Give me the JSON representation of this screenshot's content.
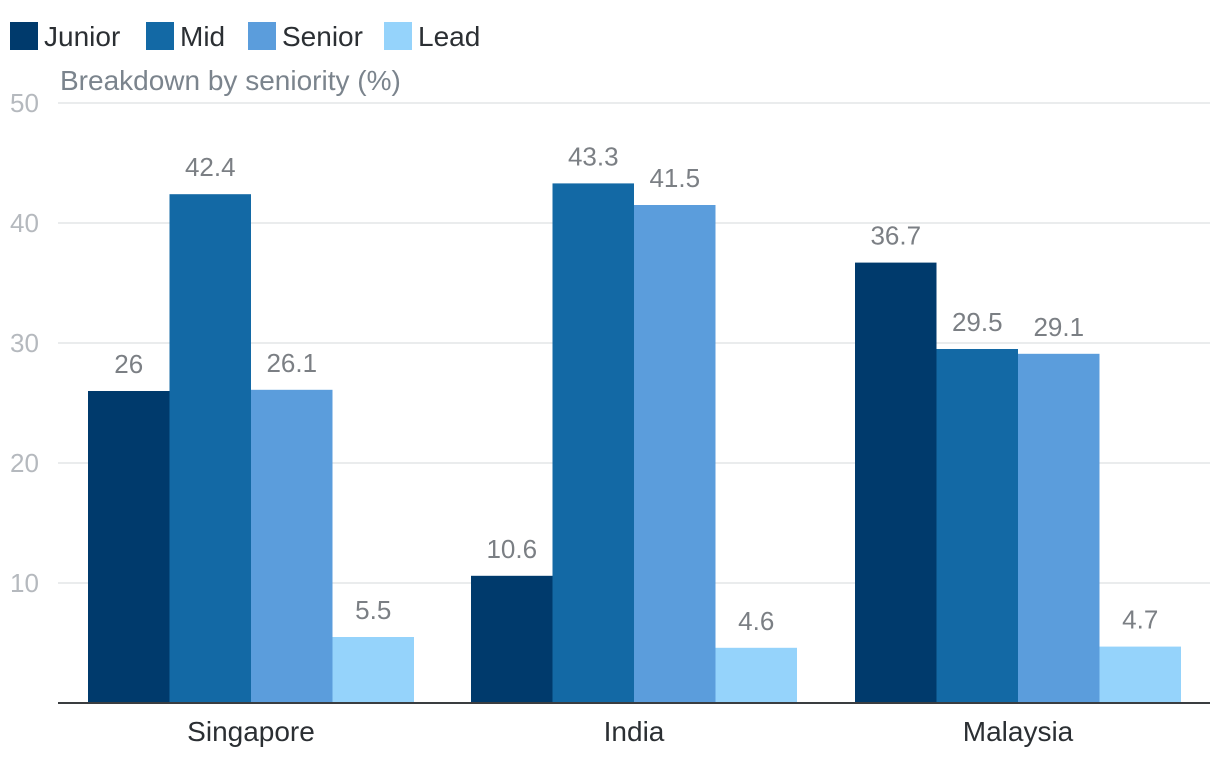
{
  "chart_data": {
    "type": "bar",
    "title": "",
    "subtitle": "Breakdown by seniority (%)",
    "xlabel": "",
    "ylabel": "",
    "categories": [
      "Singapore",
      "India",
      "Malaysia"
    ],
    "series": [
      {
        "name": "Junior",
        "color": "#003a6c",
        "values": [
          26,
          10.6,
          36.7
        ],
        "labels": [
          "26",
          "10.6",
          "36.7"
        ]
      },
      {
        "name": "Mid",
        "color": "#1369a5",
        "values": [
          42.4,
          43.3,
          29.5
        ],
        "labels": [
          "42.4",
          "43.3",
          "29.5"
        ]
      },
      {
        "name": "Senior",
        "color": "#5b9ddc",
        "values": [
          26.1,
          41.5,
          29.1
        ],
        "labels": [
          "26.1",
          "41.5",
          "29.1"
        ]
      },
      {
        "name": "Lead",
        "color": "#95d3fb",
        "values": [
          5.5,
          4.6,
          4.7
        ],
        "labels": [
          "5.5",
          "4.6",
          "4.7"
        ]
      }
    ],
    "ylim": [
      0,
      50
    ],
    "yticks": [
      10,
      20,
      30,
      40,
      50
    ],
    "grid": true,
    "legend_position": "top-left"
  }
}
